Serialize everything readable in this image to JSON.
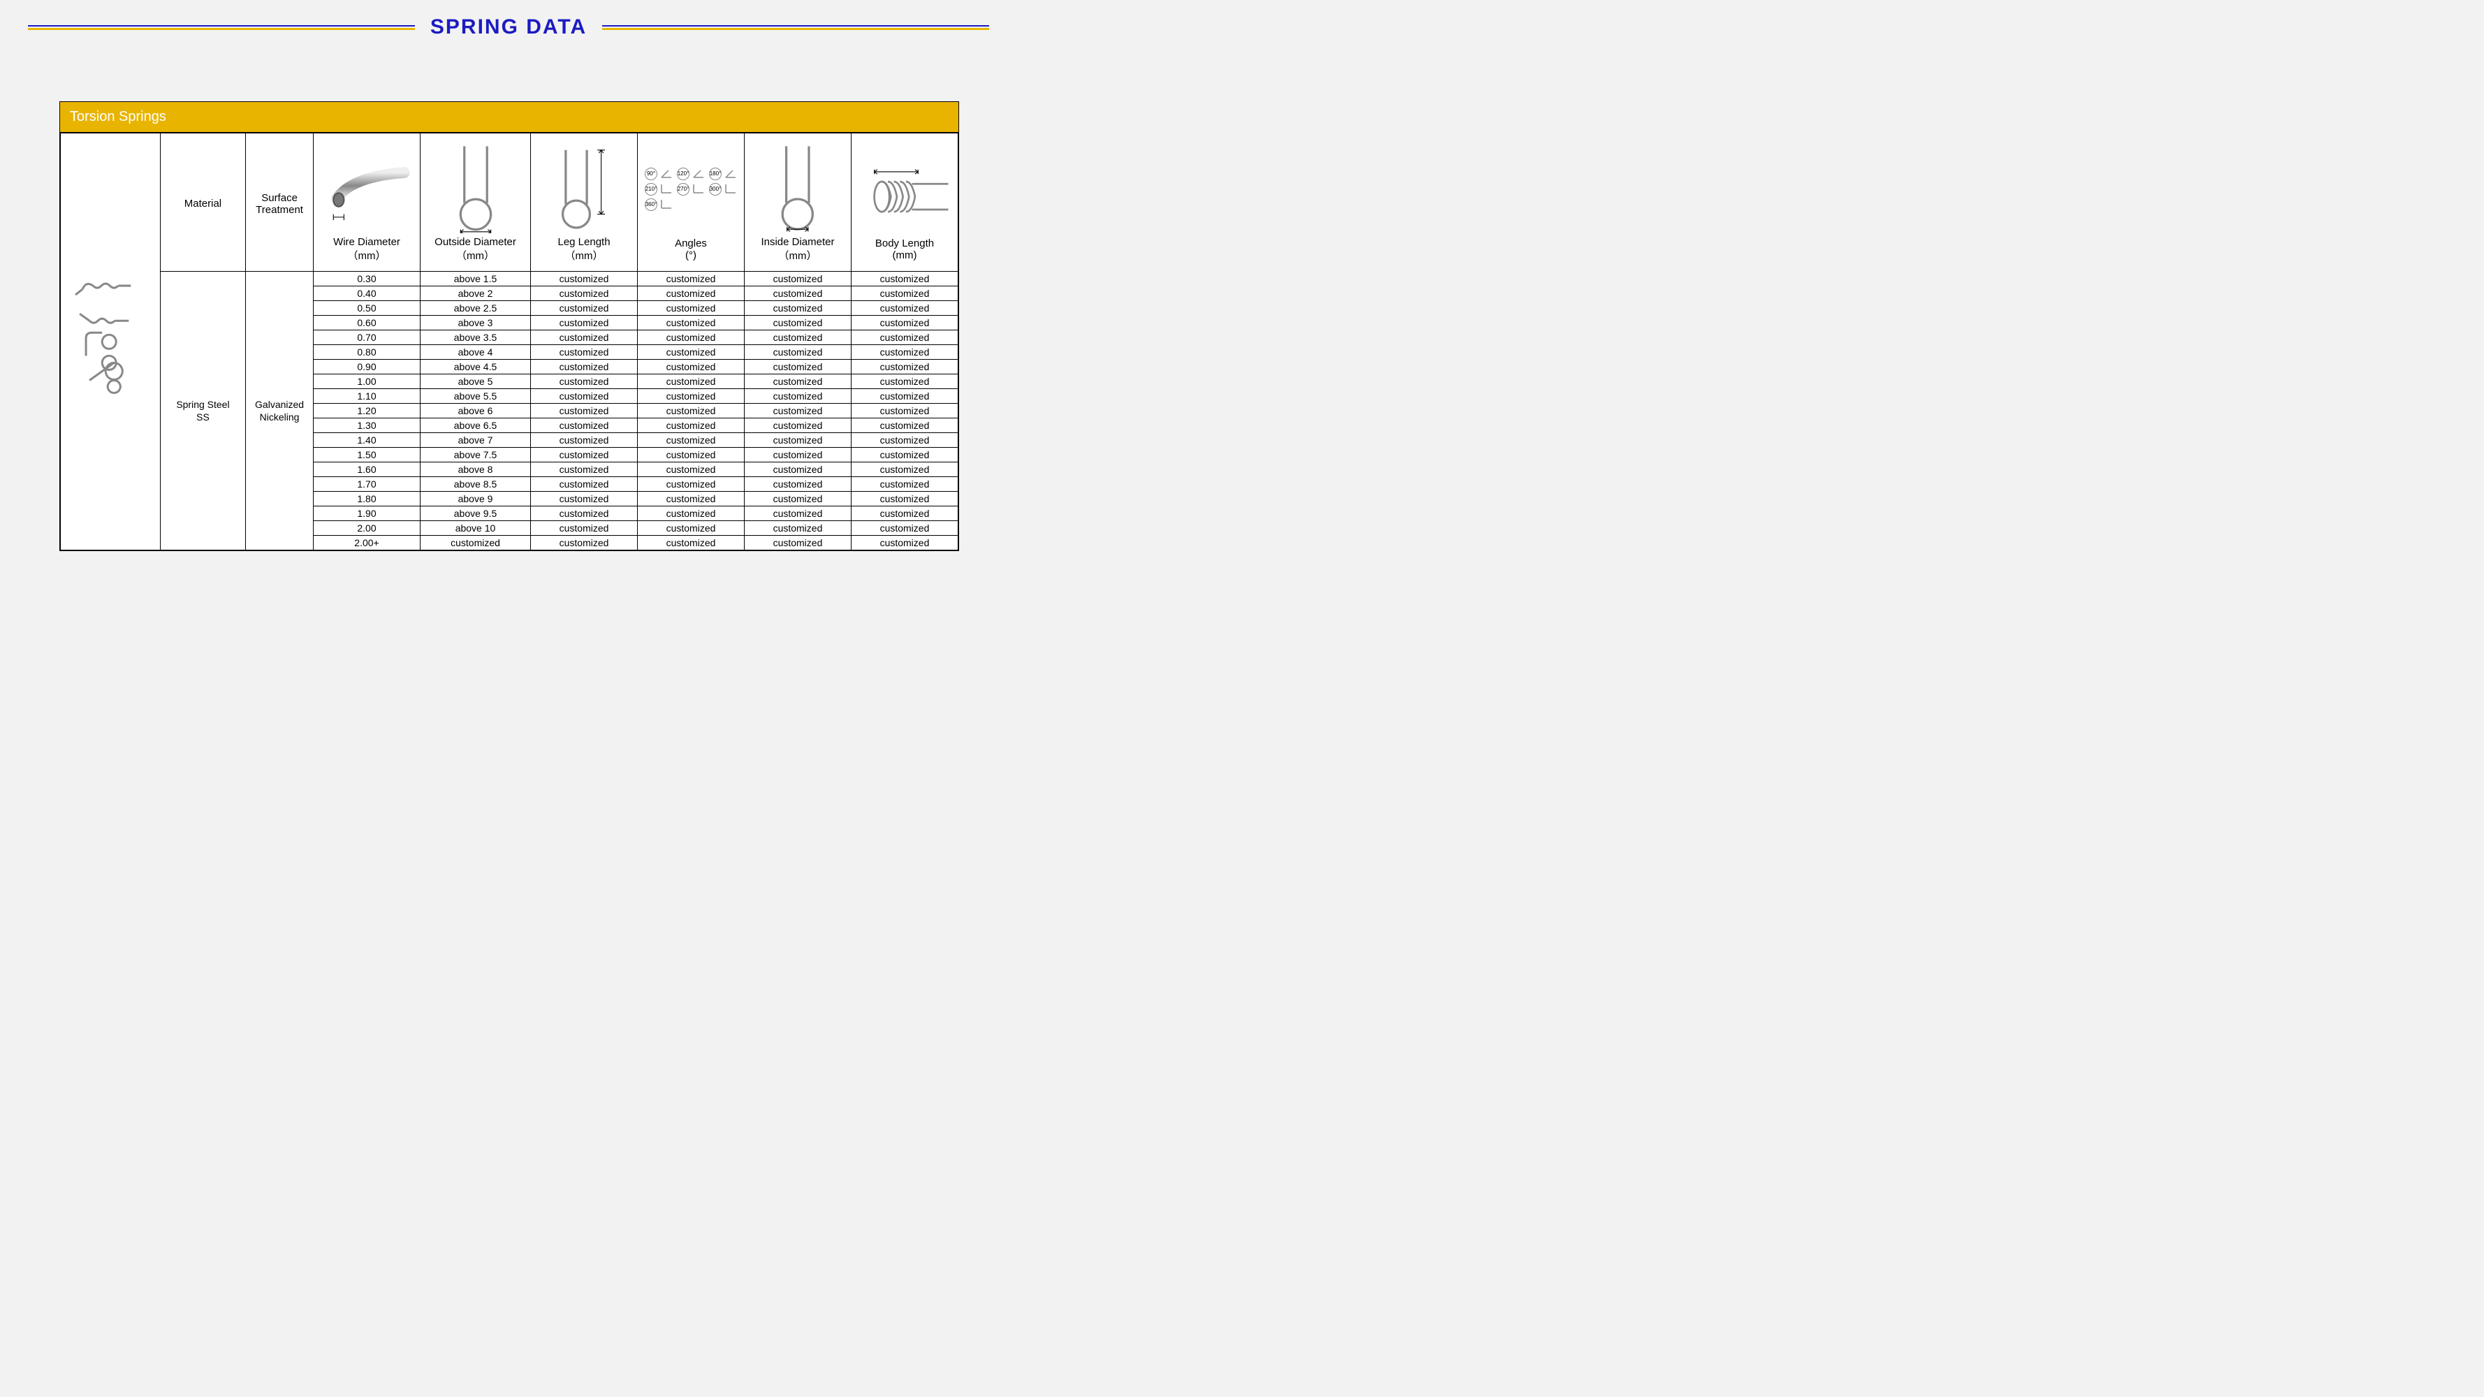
{
  "page_title": "SPRING  DATA",
  "panel_title": "Torsion Springs",
  "colors": {
    "accent_blue": "#1b1bc2",
    "accent_gold": "#e8b400",
    "page_bg": "#f2f2f2"
  },
  "columns": [
    {
      "key": "material",
      "label": "Material",
      "sub": "",
      "width": 120
    },
    {
      "key": "surface",
      "label": "Surface",
      "sub": "Treatment",
      "width": 95
    },
    {
      "key": "wire",
      "label": "Wire Diameter",
      "sub": "（mm）",
      "width": 150
    },
    {
      "key": "od",
      "label": "Outside Diameter",
      "sub": "（mm）",
      "width": 155
    },
    {
      "key": "leg",
      "label": "Leg Length",
      "sub": "（mm）",
      "width": 150
    },
    {
      "key": "angles",
      "label": "Angles",
      "sub": "(°)",
      "width": 150
    },
    {
      "key": "id",
      "label": "Inside Diameter",
      "sub": "（mm）",
      "width": 150
    },
    {
      "key": "body",
      "label": "Body Length",
      "sub": "(mm)",
      "width": 150
    }
  ],
  "image_col_width": 140,
  "material_cell": "Spring Steel\nSS",
  "surface_cell": "Galvanized\nNickeling",
  "angle_labels": [
    "90°",
    "120°",
    "180°",
    "210°",
    "270°",
    "300°",
    "360°"
  ],
  "rows": [
    {
      "wire": "0.30",
      "od": "above 1.5",
      "leg": "customized",
      "angles": "customized",
      "id": "customized",
      "body": "customized"
    },
    {
      "wire": "0.40",
      "od": "above 2",
      "leg": "customized",
      "angles": "customized",
      "id": "customized",
      "body": "customized"
    },
    {
      "wire": "0.50",
      "od": "above 2.5",
      "leg": "customized",
      "angles": "customized",
      "id": "customized",
      "body": "customized"
    },
    {
      "wire": "0.60",
      "od": "above 3",
      "leg": "customized",
      "angles": "customized",
      "id": "customized",
      "body": "customized"
    },
    {
      "wire": "0.70",
      "od": "above 3.5",
      "leg": "customized",
      "angles": "customized",
      "id": "customized",
      "body": "customized"
    },
    {
      "wire": "0.80",
      "od": "above 4",
      "leg": "customized",
      "angles": "customized",
      "id": "customized",
      "body": "customized"
    },
    {
      "wire": "0.90",
      "od": "above 4.5",
      "leg": "customized",
      "angles": "customized",
      "id": "customized",
      "body": "customized"
    },
    {
      "wire": "1.00",
      "od": "above 5",
      "leg": "customized",
      "angles": "customized",
      "id": "customized",
      "body": "customized"
    },
    {
      "wire": "1.10",
      "od": "above 5.5",
      "leg": "customized",
      "angles": "customized",
      "id": "customized",
      "body": "customized"
    },
    {
      "wire": "1.20",
      "od": "above 6",
      "leg": "customized",
      "angles": "customized",
      "id": "customized",
      "body": "customized"
    },
    {
      "wire": "1.30",
      "od": "above 6.5",
      "leg": "customized",
      "angles": "customized",
      "id": "customized",
      "body": "customized"
    },
    {
      "wire": "1.40",
      "od": "above 7",
      "leg": "customized",
      "angles": "customized",
      "id": "customized",
      "body": "customized"
    },
    {
      "wire": "1.50",
      "od": "above 7.5",
      "leg": "customized",
      "angles": "customized",
      "id": "customized",
      "body": "customized"
    },
    {
      "wire": "1.60",
      "od": "above 8",
      "leg": "customized",
      "angles": "customized",
      "id": "customized",
      "body": "customized"
    },
    {
      "wire": "1.70",
      "od": "above 8.5",
      "leg": "customized",
      "angles": "customized",
      "id": "customized",
      "body": "customized"
    },
    {
      "wire": "1.80",
      "od": "above 9",
      "leg": "customized",
      "angles": "customized",
      "id": "customized",
      "body": "customized"
    },
    {
      "wire": "1.90",
      "od": "above 9.5",
      "leg": "customized",
      "angles": "customized",
      "id": "customized",
      "body": "customized"
    },
    {
      "wire": "2.00",
      "od": "above 10",
      "leg": "customized",
      "angles": "customized",
      "id": "customized",
      "body": "customized"
    },
    {
      "wire": "2.00+",
      "od": "customized",
      "leg": "customized",
      "angles": "customized",
      "id": "customized",
      "body": "customized"
    }
  ]
}
